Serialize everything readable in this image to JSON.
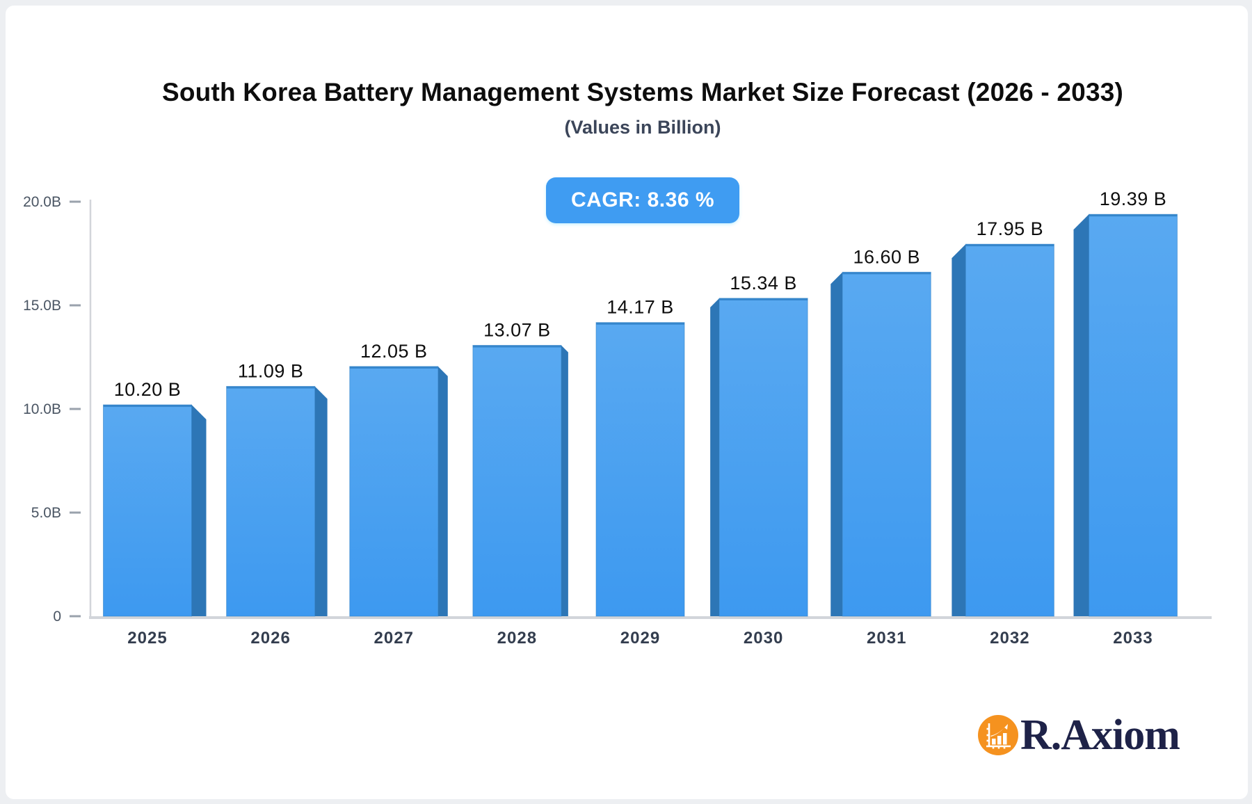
{
  "title": "South Korea Battery Management Systems Market Size Forecast (2026 - 2033)",
  "subtitle": "(Values in Billion)",
  "badge": {
    "label": "CAGR: 8.36 %"
  },
  "logo": {
    "brand": "R.Axiom",
    "icon": "bar-chart-growth-icon"
  },
  "colors": {
    "bar_face_top": "#59a9f1",
    "bar_face_bottom": "#3d99f0",
    "bar_side": "#2d76b6",
    "bar_top_edge": "#2f80c6",
    "badge_bg": "#3f9cf2",
    "badge_text": "#ffffff",
    "axis_line": "#d2d5da",
    "tick": "#9aa2ac",
    "y_label": "#4a5563",
    "x_label": "#333d4e",
    "value_label": "#0e0e0e",
    "title_color": "#0d0d0d",
    "subtitle_color": "#3b4559",
    "logo_orange": "#f5921f",
    "logo_navy": "#1e2248"
  },
  "chart_data": {
    "type": "bar",
    "title": "South Korea Battery Management Systems Market Size Forecast (2026 - 2033)",
    "subtitle": "(Values in Billion)",
    "annotation": "CAGR: 8.36 %",
    "categories": [
      "2025",
      "2026",
      "2027",
      "2028",
      "2029",
      "2030",
      "2031",
      "2032",
      "2033"
    ],
    "values": [
      10.2,
      11.09,
      12.05,
      13.07,
      14.17,
      15.34,
      16.6,
      17.95,
      19.39
    ],
    "value_labels": [
      "10.20 B",
      "11.09 B",
      "12.05 B",
      "13.07 B",
      "14.17 B",
      "15.34 B",
      "16.60 B",
      "17.95 B",
      "19.39 B"
    ],
    "xlabel": "",
    "ylabel": "",
    "ylim": [
      0,
      20
    ],
    "y_ticks": [
      {
        "v": 0,
        "label": "0"
      },
      {
        "v": 5,
        "label": "5.0B"
      },
      {
        "v": 10,
        "label": "10.0B"
      },
      {
        "v": 15,
        "label": "15.0B"
      },
      {
        "v": 20,
        "label": "20.0B"
      }
    ],
    "grid": false,
    "legend": false,
    "bar_style": "3d-perspective"
  }
}
